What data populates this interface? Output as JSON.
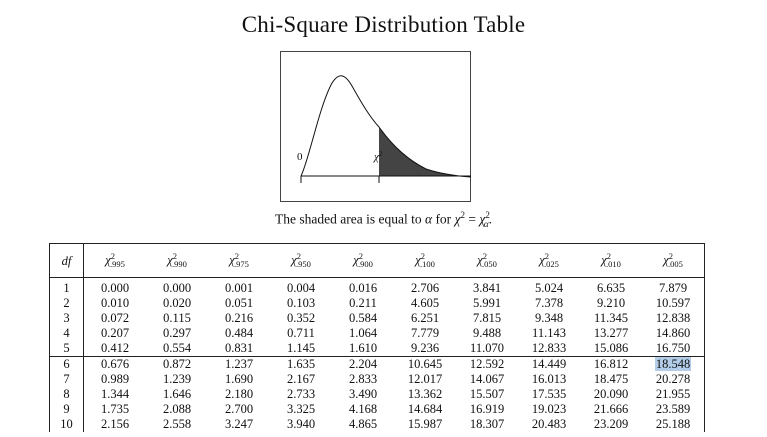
{
  "title": "Chi-Square Distribution Table",
  "figure": {
    "origin_label": "0",
    "chi_label": "χ",
    "chi_sup": "2"
  },
  "caption": {
    "text_before": "The shaded area is equal to",
    "alpha": "α",
    "for": "for",
    "chi": "χ",
    "sup": "2",
    "equals": "=",
    "chi_alpha_sub": "α"
  },
  "table": {
    "df_header": "df",
    "columns": [
      ".995",
      ".990",
      ".975",
      ".950",
      ".900",
      ".100",
      ".050",
      ".025",
      ".010",
      ".005"
    ],
    "rows": [
      {
        "df": "1",
        "values": [
          "0.000",
          "0.000",
          "0.001",
          "0.004",
          "0.016",
          "2.706",
          "3.841",
          "5.024",
          "6.635",
          "7.879"
        ]
      },
      {
        "df": "2",
        "values": [
          "0.010",
          "0.020",
          "0.051",
          "0.103",
          "0.211",
          "4.605",
          "5.991",
          "7.378",
          "9.210",
          "10.597"
        ]
      },
      {
        "df": "3",
        "values": [
          "0.072",
          "0.115",
          "0.216",
          "0.352",
          "0.584",
          "6.251",
          "7.815",
          "9.348",
          "11.345",
          "12.838"
        ]
      },
      {
        "df": "4",
        "values": [
          "0.207",
          "0.297",
          "0.484",
          "0.711",
          "1.064",
          "7.779",
          "9.488",
          "11.143",
          "13.277",
          "14.860"
        ]
      },
      {
        "df": "5",
        "values": [
          "0.412",
          "0.554",
          "0.831",
          "1.145",
          "1.610",
          "9.236",
          "11.070",
          "12.833",
          "15.086",
          "16.750"
        ]
      },
      {
        "df": "6",
        "values": [
          "0.676",
          "0.872",
          "1.237",
          "1.635",
          "2.204",
          "10.645",
          "12.592",
          "14.449",
          "16.812",
          "18.548"
        ]
      },
      {
        "df": "7",
        "values": [
          "0.989",
          "1.239",
          "1.690",
          "2.167",
          "2.833",
          "12.017",
          "14.067",
          "16.013",
          "18.475",
          "20.278"
        ]
      },
      {
        "df": "8",
        "values": [
          "1.344",
          "1.646",
          "2.180",
          "2.733",
          "3.490",
          "13.362",
          "15.507",
          "17.535",
          "20.090",
          "21.955"
        ]
      },
      {
        "df": "9",
        "values": [
          "1.735",
          "2.088",
          "2.700",
          "3.325",
          "4.168",
          "14.684",
          "16.919",
          "19.023",
          "21.666",
          "23.589"
        ]
      },
      {
        "df": "10",
        "values": [
          "2.156",
          "2.558",
          "3.247",
          "3.940",
          "4.865",
          "15.987",
          "18.307",
          "20.483",
          "23.209",
          "25.188"
        ]
      }
    ],
    "selected": {
      "df": "6",
      "column": ".005"
    }
  },
  "colors": {
    "shade": "#444444",
    "selection": "#b3cde9"
  }
}
